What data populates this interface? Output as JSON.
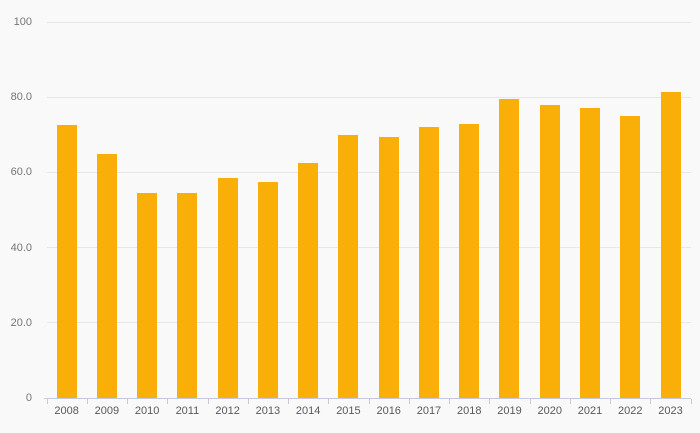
{
  "chart_data": {
    "type": "bar",
    "title": "",
    "xlabel": "",
    "ylabel": "",
    "categories": [
      "2008",
      "2009",
      "2010",
      "2011",
      "2012",
      "2013",
      "2014",
      "2015",
      "2016",
      "2017",
      "2018",
      "2019",
      "2020",
      "2021",
      "2022",
      "2023"
    ],
    "values": [
      72.5,
      65,
      54.5,
      54.5,
      58.5,
      57.5,
      62.5,
      70,
      69.5,
      72,
      73,
      79.5,
      78,
      77,
      75,
      81.5
    ],
    "y_tick_labels": [
      "100",
      "80.0",
      "60.0",
      "40.0",
      "20.0",
      "0"
    ],
    "y_tick_values": [
      100,
      80,
      60,
      40,
      20,
      0
    ],
    "ylim": [
      0,
      100
    ],
    "grid": true,
    "legend": false,
    "bar_color": "#F9AE08"
  },
  "colors": {
    "background": "#F9F9FA",
    "gridline": "#E7E7E7",
    "axis_line": "#C3C9DF",
    "y_label_color": "#757575",
    "x_label_color": "#595959"
  }
}
